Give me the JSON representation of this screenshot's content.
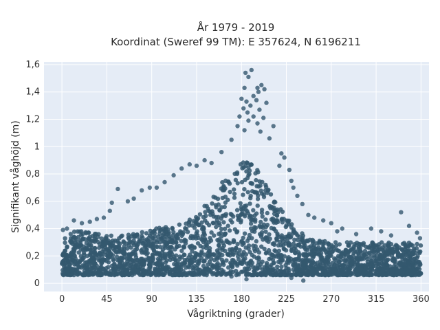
{
  "chart_data": {
    "type": "scatter",
    "title": "År 1979 - 2019",
    "subtitle": "Koordinat (Sweref 99 TM): E 357624, N 6196211",
    "xlabel": "Vågriktning (grader)",
    "ylabel": "Signifikant våghöjd (m)",
    "xlim": [
      -18,
      368
    ],
    "ylim": [
      -0.06,
      1.62
    ],
    "x_ticks": [
      0,
      45,
      90,
      135,
      180,
      225,
      270,
      315,
      360
    ],
    "x_tick_labels": [
      "0",
      "45",
      "90",
      "135",
      "180",
      "225",
      "270",
      "315",
      "360"
    ],
    "y_ticks": [
      0,
      0.2,
      0.4,
      0.6,
      0.8,
      1.0,
      1.2,
      1.4,
      1.6
    ],
    "y_tick_labels": [
      "0",
      "0,2",
      "0,4",
      "0,6",
      "0,8",
      "1",
      "1,2",
      "1,4",
      "1,6"
    ],
    "grid": true,
    "colors": {
      "marker": "#34586f",
      "plot_background": "#e5ecf6",
      "grid": "#ffffff"
    },
    "series": [
      {
        "points": [
          [
            190,
            1.56
          ],
          [
            184,
            1.54
          ],
          [
            187,
            1.51
          ],
          [
            200,
            1.45
          ],
          [
            196,
            1.43
          ],
          [
            183,
            1.43
          ],
          [
            203,
            1.42
          ],
          [
            197,
            1.4
          ],
          [
            192,
            1.37
          ],
          [
            180,
            1.35
          ],
          [
            185,
            1.33
          ],
          [
            195,
            1.34
          ],
          [
            205,
            1.32
          ],
          [
            189,
            1.3
          ],
          [
            182,
            1.28
          ],
          [
            198,
            1.27
          ],
          [
            186,
            1.25
          ],
          [
            192,
            1.22
          ],
          [
            202,
            1.21
          ],
          [
            178,
            1.22
          ],
          [
            187,
            1.19
          ],
          [
            196,
            1.17
          ],
          [
            212,
            1.15
          ],
          [
            176,
            1.15
          ],
          [
            183,
            1.12
          ],
          [
            199,
            1.11
          ],
          [
            170,
            1.05
          ],
          [
            208,
            1.06
          ],
          [
            220,
            0.95
          ],
          [
            223,
            0.92
          ],
          [
            218,
            0.86
          ],
          [
            228,
            0.83
          ],
          [
            230,
            0.75
          ],
          [
            232,
            0.7
          ],
          [
            236,
            0.64
          ],
          [
            241,
            0.58
          ],
          [
            247,
            0.5
          ],
          [
            253,
            0.48
          ],
          [
            262,
            0.46
          ],
          [
            270,
            0.44
          ],
          [
            276,
            0.38
          ],
          [
            281,
            0.4
          ],
          [
            295,
            0.36
          ],
          [
            310,
            0.4
          ],
          [
            320,
            0.38
          ],
          [
            330,
            0.35
          ],
          [
            340,
            0.52
          ],
          [
            348,
            0.42
          ],
          [
            356,
            0.37
          ],
          [
            359,
            0.33
          ],
          [
            160,
            0.96
          ],
          [
            150,
            0.88
          ],
          [
            143,
            0.9
          ],
          [
            135,
            0.86
          ],
          [
            128,
            0.87
          ],
          [
            120,
            0.84
          ],
          [
            112,
            0.79
          ],
          [
            103,
            0.74
          ],
          [
            95,
            0.7
          ],
          [
            88,
            0.7
          ],
          [
            80,
            0.68
          ],
          [
            72,
            0.62
          ],
          [
            66,
            0.6
          ],
          [
            56,
            0.69
          ],
          [
            50,
            0.59
          ],
          [
            48,
            0.53
          ],
          [
            42,
            0.48
          ],
          [
            35,
            0.47
          ],
          [
            28,
            0.45
          ],
          [
            20,
            0.44
          ],
          [
            12,
            0.46
          ],
          [
            5,
            0.4
          ],
          [
            1,
            0.39
          ],
          [
            170,
            0.05
          ],
          [
            185,
            0.03
          ],
          [
            230,
            0.04
          ],
          [
            242,
            0.02
          ],
          [
            165,
            0.07
          ],
          [
            200,
            0.06
          ]
        ]
      }
    ]
  }
}
